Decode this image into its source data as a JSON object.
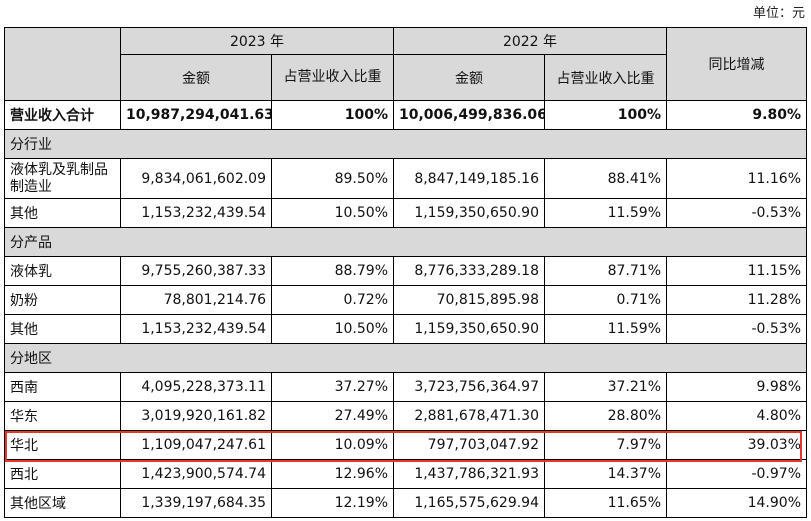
{
  "unit_label": "单位：元",
  "header": {
    "year_2023": "2023 年",
    "year_2022": "2022 年",
    "amount": "金额",
    "ratio": "占营业收入比重",
    "yoy": "同比增减"
  },
  "total": {
    "label": "营业收入合计",
    "amount_2023": "10,987,294,041.63",
    "ratio_2023": "100%",
    "amount_2022": "10,006,499,836.06",
    "ratio_2022": "100%",
    "yoy": "9.80%"
  },
  "sections": [
    {
      "title": "分行业",
      "rows": [
        {
          "label": "液体乳及乳制品制造业",
          "amount_2023": "9,834,061,602.09",
          "ratio_2023": "89.50%",
          "amount_2022": "8,847,149,185.16",
          "ratio_2022": "88.41%",
          "yoy": "11.16%"
        },
        {
          "label": "其他",
          "amount_2023": "1,153,232,439.54",
          "ratio_2023": "10.50%",
          "amount_2022": "1,159,350,650.90",
          "ratio_2022": "11.59%",
          "yoy": "-0.53%"
        }
      ]
    },
    {
      "title": "分产品",
      "rows": [
        {
          "label": "液体乳",
          "amount_2023": "9,755,260,387.33",
          "ratio_2023": "88.79%",
          "amount_2022": "8,776,333,289.18",
          "ratio_2022": "87.71%",
          "yoy": "11.15%"
        },
        {
          "label": "奶粉",
          "amount_2023": "78,801,214.76",
          "ratio_2023": "0.72%",
          "amount_2022": "70,815,895.98",
          "ratio_2022": "0.71%",
          "yoy": "11.28%"
        },
        {
          "label": "其他",
          "amount_2023": "1,153,232,439.54",
          "ratio_2023": "10.50%",
          "amount_2022": "1,159,350,650.90",
          "ratio_2022": "11.59%",
          "yoy": "-0.53%"
        }
      ]
    },
    {
      "title": "分地区",
      "rows": [
        {
          "label": "西南",
          "amount_2023": "4,095,228,373.11",
          "ratio_2023": "37.27%",
          "amount_2022": "3,723,756,364.97",
          "ratio_2022": "37.21%",
          "yoy": "9.98%"
        },
        {
          "label": "华东",
          "amount_2023": "3,019,920,161.82",
          "ratio_2023": "27.49%",
          "amount_2022": "2,881,678,471.30",
          "ratio_2022": "28.80%",
          "yoy": "4.80%"
        },
        {
          "label": "华北",
          "amount_2023": "1,109,047,247.61",
          "ratio_2023": "10.09%",
          "amount_2022": "797,703,047.92",
          "ratio_2022": "7.97%",
          "yoy": "39.03%"
        },
        {
          "label": "西北",
          "amount_2023": "1,423,900,574.74",
          "ratio_2023": "12.96%",
          "amount_2022": "1,437,786,321.93",
          "ratio_2022": "14.37%",
          "yoy": "-0.97%"
        },
        {
          "label": "其他区域",
          "amount_2023": "1,339,197,684.35",
          "ratio_2023": "12.19%",
          "amount_2022": "1,165,575,629.94",
          "ratio_2022": "11.65%",
          "yoy": "14.90%"
        }
      ]
    }
  ]
}
